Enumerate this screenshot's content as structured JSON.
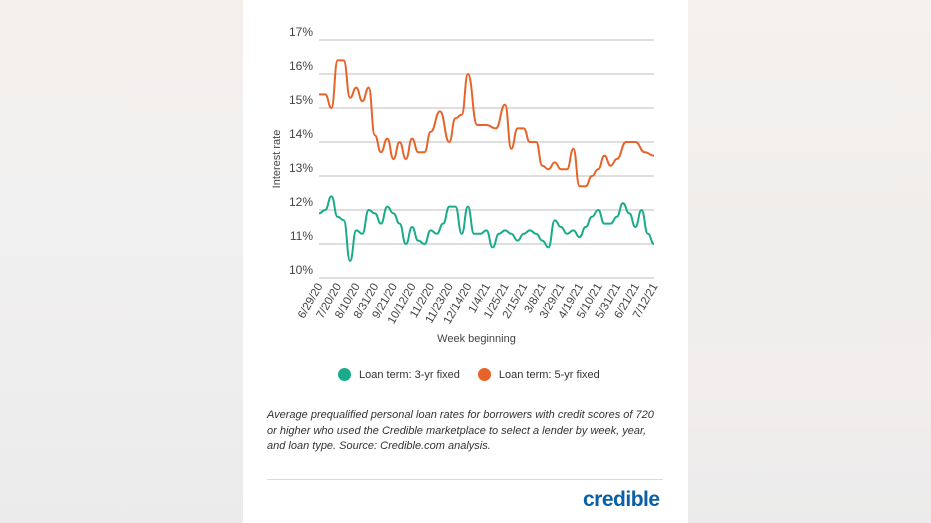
{
  "chart_data": {
    "type": "line",
    "ylabel": "Interest rate",
    "xlabel": "Week beginning",
    "ylim": [
      10,
      17
    ],
    "y_ticks": [
      "17%",
      "16%",
      "15%",
      "14%",
      "13%",
      "12%",
      "11%",
      "10%"
    ],
    "x_ticks": [
      "6/29/20",
      "7/20/20",
      "8/10/20",
      "8/31/20",
      "9/21/20",
      "10/12/20",
      "11/2/20",
      "11/23/20",
      "12/14/20",
      "1/4/21",
      "1/25/21",
      "2/15/21",
      "3/8/21",
      "3/29/21",
      "4/19/21",
      "5/10/21",
      "5/31/21",
      "6/21/21",
      "7/12/21"
    ],
    "grid": "horizontal",
    "legend_placement": "bottom",
    "series": [
      {
        "name": "Loan term: 3-yr fixed",
        "color": "#1aab8a",
        "values": [
          11.9,
          12.0,
          12.4,
          11.8,
          11.7,
          10.5,
          11.4,
          11.3,
          12.0,
          11.9,
          11.6,
          12.1,
          11.9,
          11.6,
          11.0,
          11.5,
          11.1,
          11.0,
          11.4,
          11.3,
          11.6,
          12.1,
          12.1,
          11.3,
          12.1,
          11.3,
          11.3,
          11.4,
          10.9,
          11.3,
          11.4,
          11.3,
          11.1,
          11.3,
          11.4,
          11.3,
          11.1,
          10.9,
          11.7,
          11.5,
          11.3,
          11.4,
          11.2,
          11.5,
          11.8,
          12.0,
          11.6,
          11.6,
          11.8,
          12.2,
          11.9,
          11.5,
          12.0,
          11.3,
          11.0
        ],
        "x": [
          0,
          0.33,
          0.67,
          1,
          1.33,
          1.67,
          2,
          2.33,
          2.67,
          3,
          3.33,
          3.67,
          4,
          4.33,
          4.67,
          5,
          5.33,
          5.67,
          6,
          6.33,
          6.67,
          7,
          7.33,
          7.67,
          8,
          8.33,
          8.67,
          9,
          9.33,
          9.67,
          10,
          10.33,
          10.67,
          11,
          11.33,
          11.67,
          12,
          12.33,
          12.67,
          13,
          13.33,
          13.67,
          14,
          14.33,
          14.67,
          15,
          15.33,
          15.67,
          16,
          16.33,
          16.67,
          17,
          17.33,
          17.67,
          18
        ]
      },
      {
        "name": "Loan term: 5-yr fixed",
        "color": "#e8632a",
        "values": [
          15.4,
          15.4,
          15.0,
          16.4,
          16.4,
          15.3,
          15.6,
          15.2,
          15.6,
          14.2,
          13.7,
          14.1,
          13.5,
          14.0,
          13.5,
          14.1,
          13.7,
          13.7,
          14.3,
          14.9,
          14.0,
          14.7,
          14.8,
          16.0,
          14.5,
          14.5,
          14.4,
          15.1,
          13.8,
          14.4,
          14.4,
          14.0,
          14.0,
          13.3,
          13.2,
          13.4,
          13.2,
          13.2,
          13.8,
          12.7,
          12.7,
          13.0,
          13.2,
          13.6,
          13.3,
          13.5,
          14.0,
          14.0,
          13.7,
          13.6
        ],
        "x": [
          0,
          0.33,
          0.67,
          1,
          1.33,
          1.67,
          2,
          2.33,
          2.67,
          3,
          3.33,
          3.67,
          4,
          4.33,
          4.67,
          5,
          5.33,
          5.67,
          6,
          6.5,
          7,
          7.33,
          7.67,
          8,
          8.5,
          9,
          9.5,
          10,
          10.33,
          10.67,
          11,
          11.33,
          11.67,
          12,
          12.33,
          12.67,
          13,
          13.33,
          13.67,
          14,
          14.33,
          14.67,
          15,
          15.33,
          15.67,
          16,
          16.5,
          17,
          17.5,
          18
        ]
      }
    ]
  },
  "legend": {
    "items": [
      {
        "label": "Loan term: 3-yr fixed",
        "color": "#1aab8a"
      },
      {
        "label": "Loan term: 5-yr fixed",
        "color": "#e8632a"
      }
    ]
  },
  "caption": "Average prequalified personal loan rates for borrowers with credit scores of 720 or higher who used the Credible marketplace to select a lender by week, year, and loan type. Source: Credible.com analysis.",
  "logo_text": "credible"
}
